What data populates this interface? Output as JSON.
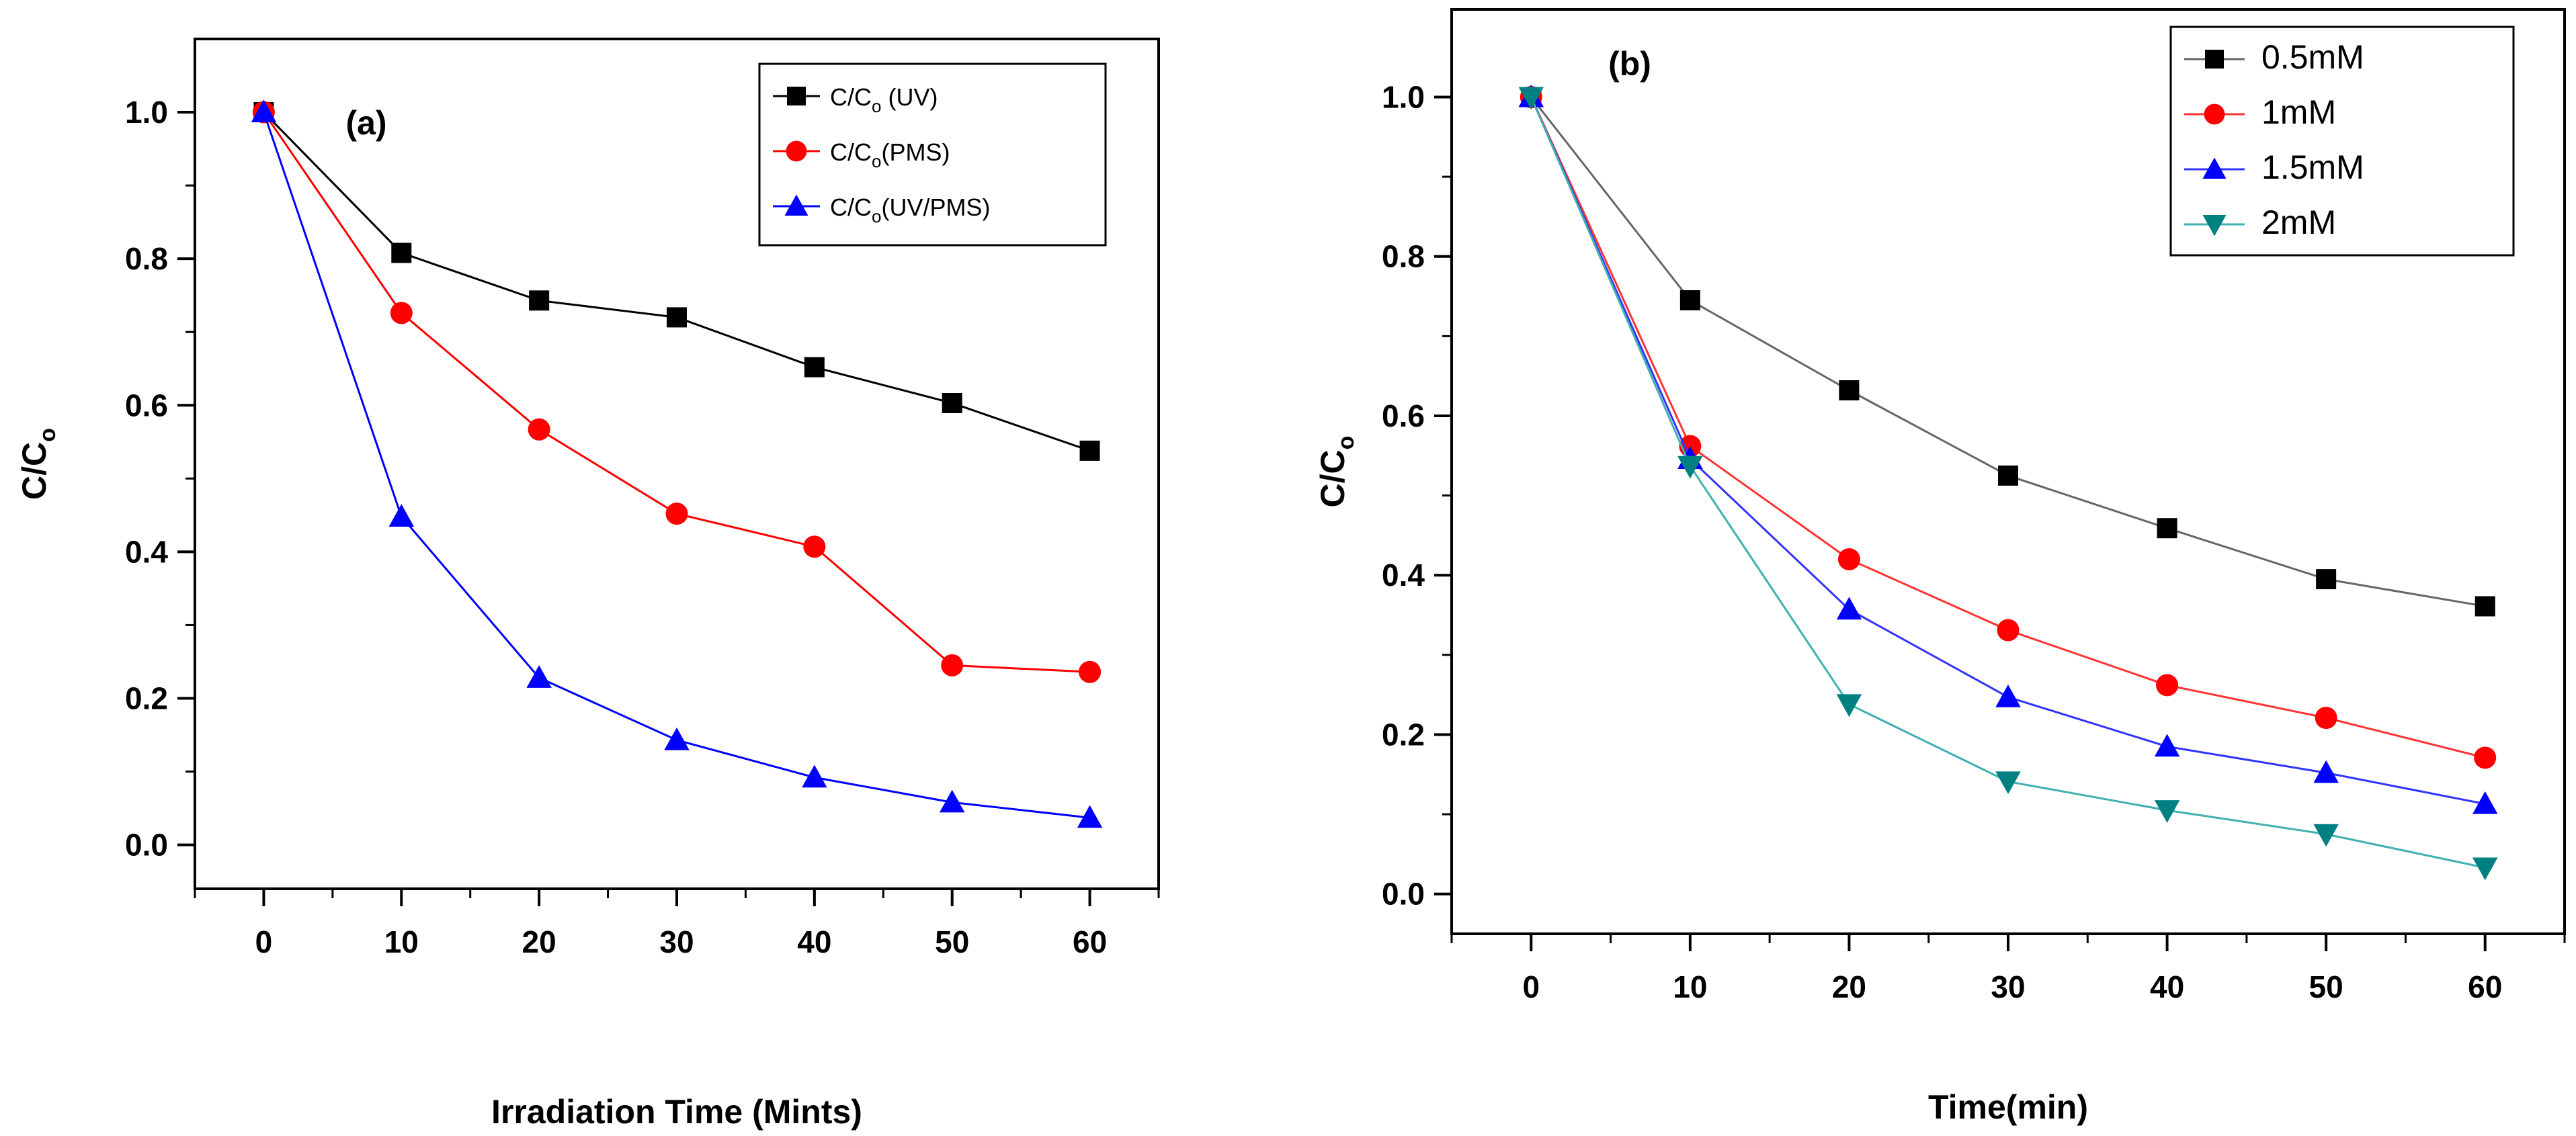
{
  "chart_data": [
    {
      "type": "line",
      "panel_label": "(a)",
      "title": "",
      "xlabel": "Irradiation Time (Mints)",
      "ylabel": "C/C",
      "ylabel_subscript": "o",
      "xlim": [
        -5,
        65
      ],
      "ylim": [
        -0.06,
        1.1
      ],
      "x_ticks": [
        0,
        10,
        20,
        30,
        40,
        50,
        60
      ],
      "x_tick_labels": [
        "0",
        "10",
        "20",
        "30",
        "40",
        "50",
        "60"
      ],
      "y_ticks": [
        0.0,
        0.2,
        0.4,
        0.6,
        0.8,
        1.0
      ],
      "y_tick_labels": [
        "0.0",
        "0.2",
        "0.4",
        "0.6",
        "0.8",
        "1.0"
      ],
      "x": [
        0,
        10,
        20,
        30,
        40,
        50,
        60
      ],
      "legend_position": "top-right",
      "grid": false,
      "series": [
        {
          "name": "C/Co(UV)",
          "legend_prefix": "C/C",
          "legend_sub": "o",
          "legend_suffix": " (UV)",
          "color": "#000000",
          "marker": "square",
          "values": [
            1.0,
            0.808,
            0.743,
            0.72,
            0.652,
            0.603,
            0.538
          ]
        },
        {
          "name": "C/Co(PMS)",
          "legend_prefix": "C/C",
          "legend_sub": "o",
          "legend_suffix": "(PMS)",
          "color": "#ff0000",
          "marker": "circle",
          "values": [
            1.0,
            0.726,
            0.567,
            0.452,
            0.407,
            0.245,
            0.236
          ]
        },
        {
          "name": "C/Co(UV/PMS)",
          "legend_prefix": "C/C",
          "legend_sub": "o",
          "legend_suffix": "(UV/PMS)",
          "color": "#0000ff",
          "marker": "triangle-up",
          "values": [
            1.0,
            0.448,
            0.228,
            0.143,
            0.092,
            0.058,
            0.037
          ]
        }
      ]
    },
    {
      "type": "line",
      "panel_label": "(b)",
      "title": "",
      "xlabel": "Time(min)",
      "ylabel": "C/C",
      "ylabel_subscript": "o",
      "xlim": [
        -5,
        65
      ],
      "ylim": [
        -0.05,
        1.11
      ],
      "x_ticks": [
        0,
        10,
        20,
        30,
        40,
        50,
        60
      ],
      "x_tick_labels": [
        "0",
        "10",
        "20",
        "30",
        "40",
        "50",
        "60"
      ],
      "y_ticks": [
        0.0,
        0.2,
        0.4,
        0.6,
        0.8,
        1.0
      ],
      "y_tick_labels": [
        "0.0",
        "0.2",
        "0.4",
        "0.6",
        "0.8",
        "1.0"
      ],
      "x": [
        0,
        10,
        20,
        30,
        40,
        50,
        60
      ],
      "legend_position": "top-right",
      "grid": false,
      "series": [
        {
          "name": "0.5mM",
          "color": "#000000",
          "line_color": "#666666",
          "marker": "square",
          "values": [
            1.0,
            0.745,
            0.632,
            0.525,
            0.459,
            0.395,
            0.361
          ]
        },
        {
          "name": "1mM",
          "color": "#ff0000",
          "line_color": "#ff3333",
          "marker": "circle",
          "values": [
            1.0,
            0.562,
            0.42,
            0.331,
            0.262,
            0.221,
            0.171
          ]
        },
        {
          "name": "1.5mM",
          "color": "#0000ff",
          "line_color": "#3333ff",
          "marker": "triangle-up",
          "values": [
            1.0,
            0.546,
            0.357,
            0.247,
            0.185,
            0.152,
            0.113
          ]
        },
        {
          "name": "2mM",
          "color": "#008080",
          "line_color": "#40b0b0",
          "marker": "triangle-down",
          "values": [
            1.0,
            0.537,
            0.238,
            0.141,
            0.105,
            0.075,
            0.033
          ]
        }
      ]
    }
  ]
}
